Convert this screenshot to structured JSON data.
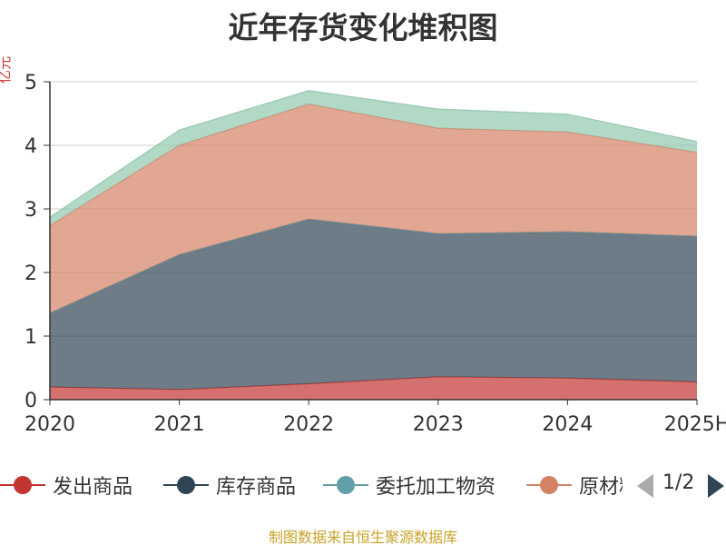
{
  "title": "近年存货变化堆积图",
  "y_unit": "亿元",
  "source": "制图数据来自恒生聚源数据库",
  "pager": {
    "text": "1/2"
  },
  "chart_data": {
    "type": "area",
    "stacked": true,
    "title": "近年存货变化堆积图",
    "ylabel": "亿元",
    "xlabel": "",
    "ylim": [
      0,
      5
    ],
    "yticks": [
      0,
      1,
      2,
      3,
      4,
      5
    ],
    "grid": true,
    "legend_position": "bottom",
    "categories": [
      "2020",
      "2021",
      "2022",
      "2023",
      "2024",
      "2025H"
    ],
    "series": [
      {
        "name": "发出商品",
        "color": "#c23531",
        "values": [
          0.2,
          0.16,
          0.25,
          0.36,
          0.34,
          0.28
        ]
      },
      {
        "name": "库存商品",
        "color": "#2f4554",
        "values": [
          1.16,
          2.12,
          2.59,
          2.25,
          2.3,
          2.29
        ]
      },
      {
        "name": "委托加工物资",
        "color": "#61a0a8",
        "values": [
          0.0,
          0.0,
          0.0,
          0.0,
          0.0,
          0.0
        ]
      },
      {
        "name": "原材料",
        "color": "#d48265",
        "values": [
          1.38,
          1.72,
          1.81,
          1.66,
          1.57,
          1.32
        ]
      },
      {
        "name": "",
        "color": "#91c7ae",
        "values": [
          0.13,
          0.24,
          0.21,
          0.3,
          0.28,
          0.17
        ]
      }
    ]
  }
}
